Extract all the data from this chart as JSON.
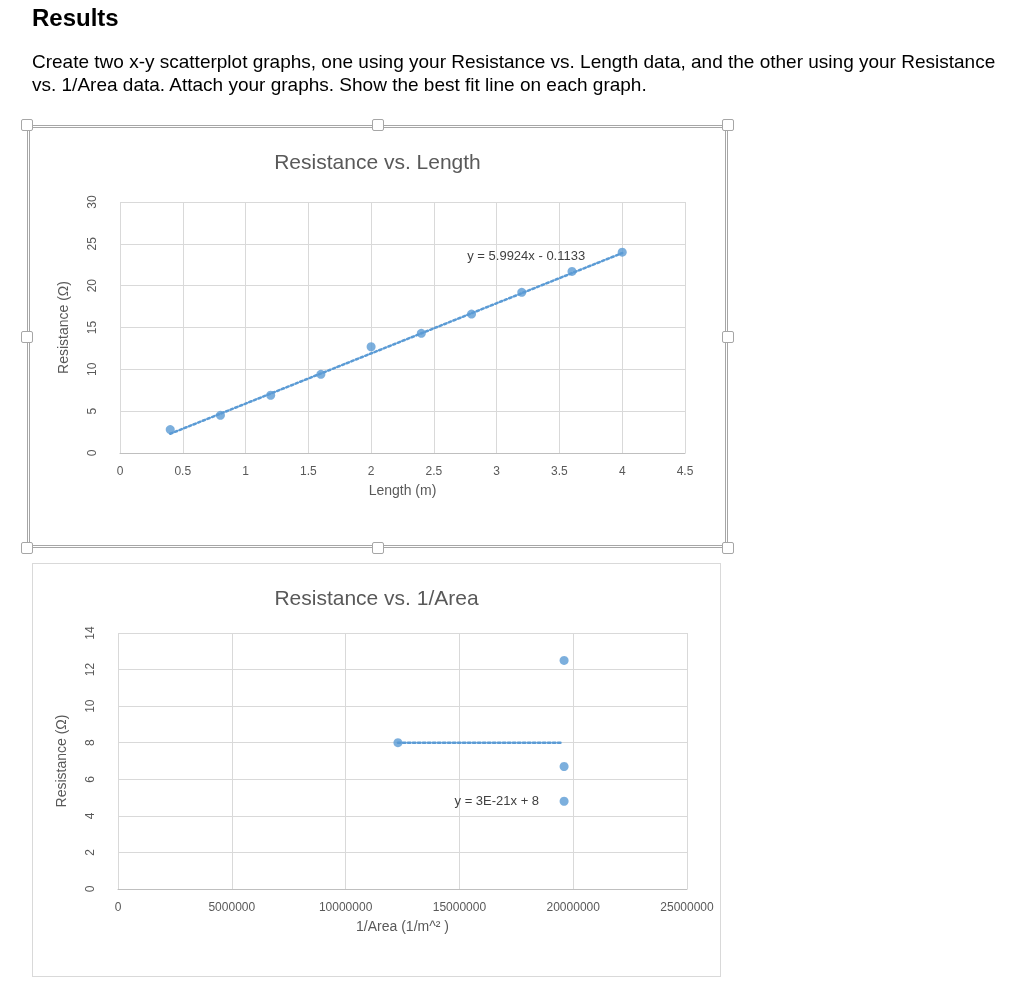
{
  "chart_data": [
    {
      "type": "scatter",
      "title": "Resistance vs. Length",
      "xlabel": "Length (m)",
      "ylabel": "Resistance (Ω)",
      "annotations": [
        "Results",
        "Create two x-y scatterplot graphs, one using your Resistance vs. Length data, and the other using your Resistance vs. 1/Area data. Attach your graphs. Show the best fit line on each graph.",
        "y = 5.9924x - 0.1133"
      ],
      "xlim": [
        0,
        4.5
      ],
      "xticks": [
        0,
        0.5,
        1,
        1.5,
        2,
        2.5,
        3,
        3.5,
        4,
        4.5
      ],
      "ylim": [
        0,
        30
      ],
      "yticks": [
        0,
        5,
        10,
        15,
        20,
        25,
        30
      ],
      "grid": true,
      "marker": "circle",
      "series": [
        {
          "color": "#5b9bd5",
          "x": [
            0.4,
            0.8,
            1.2,
            1.6,
            2.0,
            2.4,
            2.8,
            3.2,
            3.6,
            4.0
          ],
          "values": [
            2.8,
            4.5,
            6.9,
            9.4,
            12.7,
            14.3,
            16.6,
            19.2,
            21.7,
            24.0
          ]
        },
        {
          "type": "line",
          "color": "#5b9bd5",
          "line_style": "dotted",
          "marker": "none",
          "x": [
            0.4,
            4.0
          ],
          "values": [
            2.3,
            23.9
          ]
        }
      ]
    },
    {
      "type": "scatter",
      "title": "Resistance vs. 1/Area",
      "xlabel": "1/Area (1/m^² )",
      "ylabel": "Resistance (Ω)",
      "annotations": [
        "y = 3E-21x + 8"
      ],
      "xlim": [
        0,
        25000000
      ],
      "xticks": [
        0,
        5000000,
        10000000,
        15000000,
        20000000,
        25000000
      ],
      "ylim": [
        0,
        14
      ],
      "yticks": [
        0,
        2,
        4,
        6,
        8,
        10,
        12,
        14
      ],
      "grid": true,
      "marker": "circle",
      "series": [
        {
          "color": "#5b9bd5",
          "x": [
            12300000,
            19600000,
            19600000,
            19600000
          ],
          "values": [
            8.0,
            12.5,
            6.7,
            4.8
          ]
        },
        {
          "type": "line",
          "color": "#5b9bd5",
          "line_style": "dotted",
          "marker": "none",
          "x": [
            12300000,
            19500000
          ],
          "values": [
            8,
            8
          ]
        }
      ]
    }
  ]
}
